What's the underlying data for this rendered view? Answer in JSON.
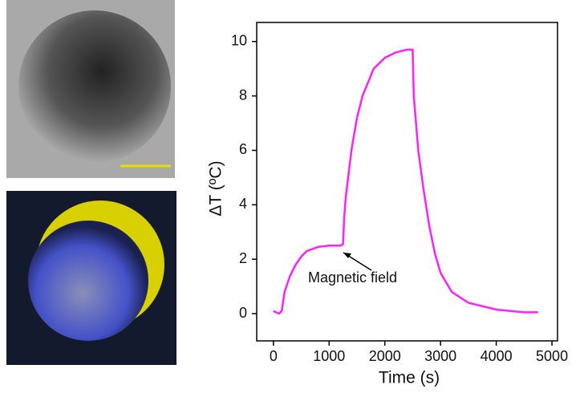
{
  "chart_data": {
    "type": "line",
    "x": [
      0,
      100,
      150,
      200,
      300,
      400,
      500,
      600,
      800,
      1000,
      1200,
      1250,
      1270,
      1300,
      1400,
      1500,
      1600,
      1800,
      2000,
      2200,
      2400,
      2500,
      2520,
      2600,
      2700,
      2800,
      2900,
      3000,
      3200,
      3500,
      4000,
      4500,
      4750
    ],
    "values": [
      0.1,
      0,
      0.1,
      0.8,
      1.4,
      1.8,
      2.1,
      2.3,
      2.45,
      2.5,
      2.5,
      2.55,
      3.5,
      4.3,
      6,
      7.2,
      8,
      9,
      9.4,
      9.6,
      9.7,
      9.7,
      8,
      6,
      4.5,
      3.2,
      2.2,
      1.5,
      0.8,
      0.4,
      0.15,
      0.05,
      0.05
    ],
    "color": "#ff22ff",
    "xlabel": "Time (s)",
    "ylabel": "ΔT (ºC)",
    "annotation": "Magnetic field",
    "xlim": [
      -300,
      5100
    ],
    "xticks": [
      0,
      1000,
      2000,
      3000,
      4000,
      5000
    ],
    "ylim": [
      -1,
      10.7
    ],
    "yticks": [
      0,
      2,
      4,
      6,
      8,
      10
    ]
  }
}
